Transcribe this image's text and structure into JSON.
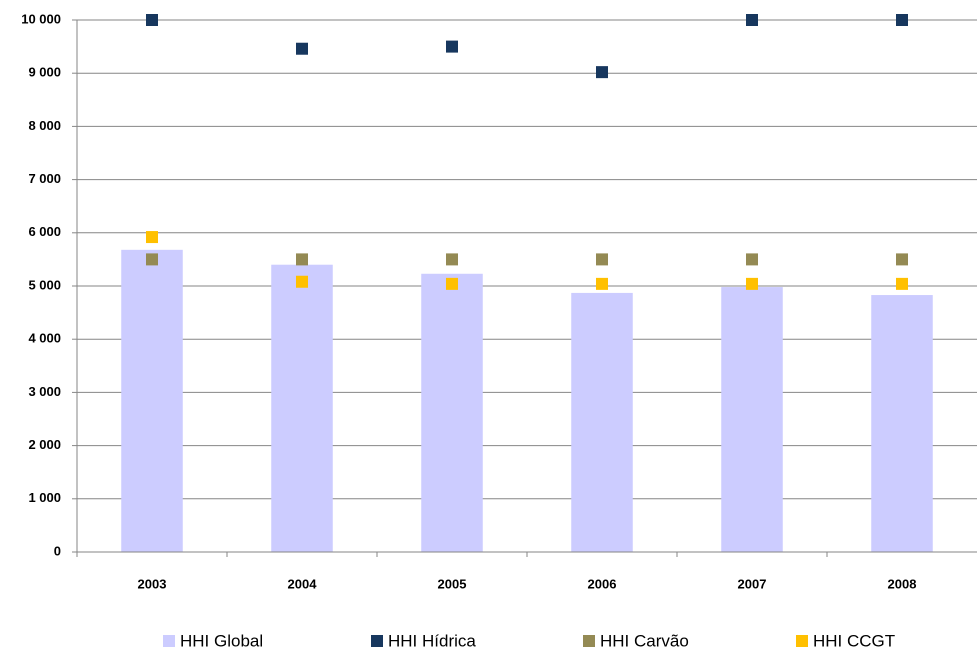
{
  "chart_data": {
    "type": "bar",
    "categories": [
      "2003",
      "2004",
      "2005",
      "2006",
      "2007",
      "2008"
    ],
    "series": [
      {
        "name": "HHI Global",
        "type": "bar",
        "color": "#ccccff",
        "values": [
          5680,
          5400,
          5230,
          4870,
          4980,
          4830
        ]
      },
      {
        "name": "HHI Hídrica",
        "type": "scatter",
        "color": "#17375e",
        "values": [
          10000,
          9460,
          9500,
          9020,
          10000,
          10000
        ]
      },
      {
        "name": "HHI Carvão",
        "type": "scatter",
        "color": "#948a54",
        "values": [
          5500,
          5500,
          5500,
          5500,
          5500,
          5500
        ]
      },
      {
        "name": "HHI CCGT",
        "type": "scatter",
        "color": "#ffc000",
        "values": [
          5920,
          5080,
          5040,
          5040,
          5040,
          5040
        ]
      }
    ],
    "ylim": [
      0,
      10000
    ],
    "yticks": [
      0,
      {
        "value": 1000,
        "label": "1 000"
      },
      {
        "value": 2000,
        "label": "2 000"
      },
      {
        "value": 3000,
        "label": "3 000"
      },
      {
        "value": 4000,
        "label": "4 000"
      },
      {
        "value": 5000,
        "label": "5 000"
      },
      {
        "value": 6000,
        "label": "6 000"
      },
      {
        "value": 7000,
        "label": "7 000"
      },
      {
        "value": 8000,
        "label": "8 000"
      },
      {
        "value": 9000,
        "label": "9 000"
      },
      {
        "value": 10000,
        "label": "10 000"
      }
    ],
    "grid": true,
    "legend": "bottom"
  }
}
